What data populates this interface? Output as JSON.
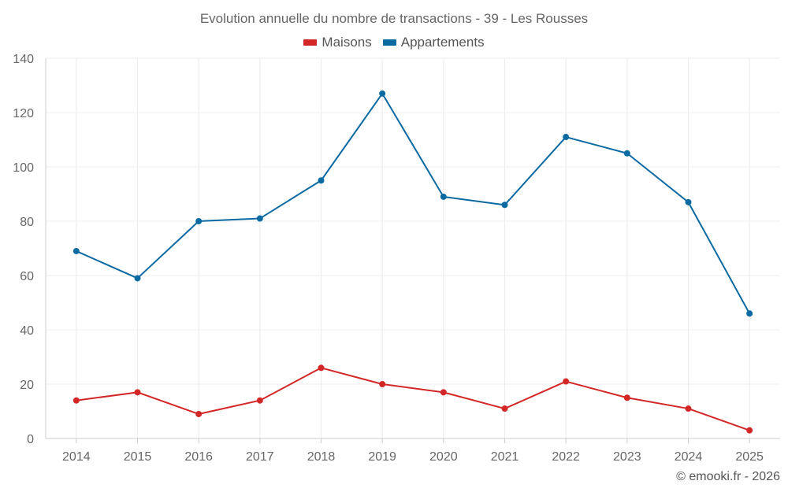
{
  "colors": {
    "maisons": "#d32727",
    "appartements": "#0a6aa1",
    "grid": "#ececec",
    "axis": "#cccccc",
    "tick_text": "#666666"
  },
  "chart_data": {
    "type": "line",
    "title": "Evolution annuelle du nombre de transactions - 39 - Les Rousses",
    "categories": [
      "2014",
      "2015",
      "2016",
      "2017",
      "2018",
      "2019",
      "2020",
      "2021",
      "2022",
      "2023",
      "2024",
      "2025"
    ],
    "series": [
      {
        "name": "Maisons",
        "color": "#d32727",
        "values": [
          14,
          17,
          9,
          14,
          26,
          20,
          17,
          11,
          21,
          15,
          11,
          3
        ]
      },
      {
        "name": "Appartements",
        "color": "#0a6aa1",
        "values": [
          69,
          59,
          80,
          81,
          95,
          127,
          89,
          86,
          111,
          105,
          87,
          46
        ]
      }
    ],
    "ylim": [
      0,
      140
    ],
    "yticks": [
      "0",
      "20",
      "40",
      "60",
      "80",
      "100",
      "120",
      "140"
    ],
    "grid": true,
    "legend_position": "top-center"
  },
  "credit": "© emooki.fr - 2026"
}
